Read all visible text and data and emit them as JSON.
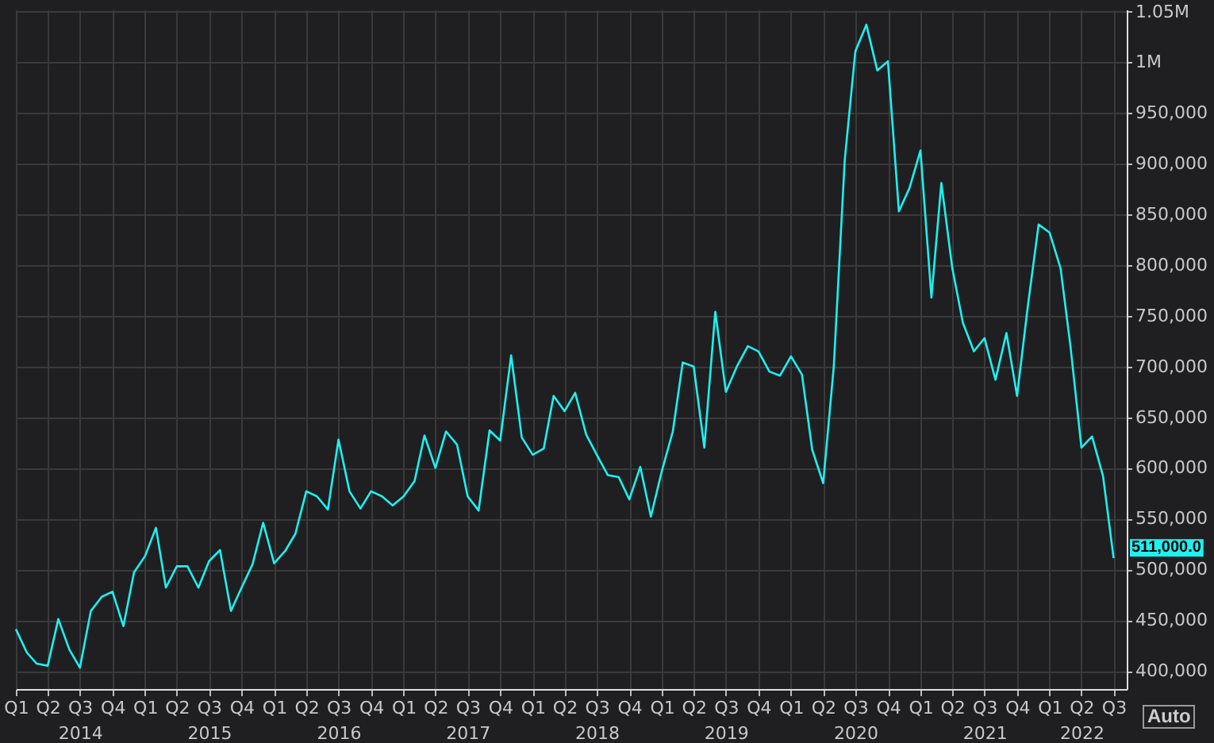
{
  "chart_data": {
    "type": "line",
    "x": [
      "2014-01",
      "2014-02",
      "2014-03",
      "2014-04",
      "2014-05",
      "2014-06",
      "2014-07",
      "2014-08",
      "2014-09",
      "2014-10",
      "2014-11",
      "2014-12",
      "2015-01",
      "2015-02",
      "2015-03",
      "2015-04",
      "2015-05",
      "2015-06",
      "2015-07",
      "2015-08",
      "2015-09",
      "2015-10",
      "2015-11",
      "2015-12",
      "2016-01",
      "2016-02",
      "2016-03",
      "2016-04",
      "2016-05",
      "2016-06",
      "2016-07",
      "2016-08",
      "2016-09",
      "2016-10",
      "2016-11",
      "2016-12",
      "2017-01",
      "2017-02",
      "2017-03",
      "2017-04",
      "2017-05",
      "2017-06",
      "2017-07",
      "2017-08",
      "2017-09",
      "2017-10",
      "2017-11",
      "2017-12",
      "2018-01",
      "2018-02",
      "2018-03",
      "2018-04",
      "2018-05",
      "2018-06",
      "2018-07",
      "2018-08",
      "2018-09",
      "2018-10",
      "2018-11",
      "2018-12",
      "2019-01",
      "2019-02",
      "2019-03",
      "2019-04",
      "2019-05",
      "2019-06",
      "2019-07",
      "2019-08",
      "2019-09",
      "2019-10",
      "2019-11",
      "2019-12",
      "2020-01",
      "2020-02",
      "2020-03",
      "2020-04",
      "2020-05",
      "2020-06",
      "2020-07",
      "2020-08",
      "2020-09",
      "2020-10",
      "2020-11",
      "2020-12",
      "2021-01",
      "2021-02",
      "2021-03",
      "2021-04",
      "2021-05",
      "2021-06",
      "2021-07",
      "2021-08",
      "2021-09",
      "2021-10",
      "2021-11",
      "2021-12",
      "2022-01",
      "2022-02",
      "2022-03",
      "2022-04",
      "2022-05",
      "2022-06",
      "2022-07"
    ],
    "series": [
      {
        "color": "#1ef0f0",
        "values": [
          441000,
          418000,
          407000,
          405000,
          451000,
          421000,
          403000,
          459000,
          473000,
          478000,
          444000,
          497000,
          513000,
          541000,
          482000,
          503000,
          503000,
          482000,
          508000,
          519000,
          459000,
          482000,
          505000,
          546000,
          506000,
          518000,
          535000,
          577000,
          572000,
          559000,
          628000,
          577000,
          560000,
          577000,
          572000,
          563000,
          572000,
          587000,
          632000,
          600000,
          636000,
          623000,
          572000,
          558000,
          637000,
          627000,
          711000,
          630000,
          613000,
          619000,
          671000,
          656000,
          674000,
          633000,
          613000,
          593000,
          591000,
          569000,
          601000,
          552000,
          597000,
          636000,
          704000,
          700000,
          620000,
          754000,
          675000,
          700000,
          720000,
          715000,
          695000,
          691000,
          710000,
          692000,
          618000,
          585000,
          700000,
          904000,
          1011000,
          1037000,
          992000,
          1001000,
          853000,
          876000,
          913000,
          768000,
          881000,
          797000,
          743000,
          715000,
          728000,
          687000,
          733000,
          671000,
          761000,
          840000,
          832000,
          797000,
          720000,
          620000,
          631000,
          592000,
          511000
        ]
      }
    ],
    "xlim": [
      "2014-01",
      "2022-08-07"
    ],
    "xticks": [
      {
        "value": "2014-01",
        "label": "Q1"
      },
      {
        "value": "2014-04",
        "label": "Q2"
      },
      {
        "value": "2014-07",
        "label": "Q3\n2014"
      },
      {
        "value": "2014-10",
        "label": "Q4"
      },
      {
        "value": "2015-01",
        "label": "Q1"
      },
      {
        "value": "2015-04",
        "label": "Q2"
      },
      {
        "value": "2015-07",
        "label": "Q3\n2015"
      },
      {
        "value": "2015-10",
        "label": "Q4"
      },
      {
        "value": "2016-01",
        "label": "Q1"
      },
      {
        "value": "2016-04",
        "label": "Q2"
      },
      {
        "value": "2016-07",
        "label": "Q3\n2016"
      },
      {
        "value": "2016-10",
        "label": "Q4"
      },
      {
        "value": "2017-01",
        "label": "Q1"
      },
      {
        "value": "2017-04",
        "label": "Q2"
      },
      {
        "value": "2017-07",
        "label": "Q3\n2017"
      },
      {
        "value": "2017-10",
        "label": "Q4"
      },
      {
        "value": "2018-01",
        "label": "Q1"
      },
      {
        "value": "2018-04",
        "label": "Q2"
      },
      {
        "value": "2018-07",
        "label": "Q3\n2018"
      },
      {
        "value": "2018-10",
        "label": "Q4"
      },
      {
        "value": "2019-01",
        "label": "Q1"
      },
      {
        "value": "2019-04",
        "label": "Q2"
      },
      {
        "value": "2019-07",
        "label": "Q3\n2019"
      },
      {
        "value": "2019-10",
        "label": "Q4"
      },
      {
        "value": "2020-01",
        "label": "Q1"
      },
      {
        "value": "2020-04",
        "label": "Q2"
      },
      {
        "value": "2020-07",
        "label": "Q3\n2020"
      },
      {
        "value": "2020-10",
        "label": "Q4"
      },
      {
        "value": "2021-01",
        "label": "Q1"
      },
      {
        "value": "2021-04",
        "label": "Q2"
      },
      {
        "value": "2021-07",
        "label": "Q3\n2021"
      },
      {
        "value": "2021-10",
        "label": "Q4"
      },
      {
        "value": "2022-01",
        "label": "Q1"
      },
      {
        "value": "2022-04",
        "label": "Q2\n2022"
      },
      {
        "value": "2022-07",
        "label": "Q3"
      }
    ],
    "ylim": [
      382000,
      1052000
    ],
    "yticks": [
      {
        "value": 400000,
        "label": "400,000"
      },
      {
        "value": 450000,
        "label": "450,000"
      },
      {
        "value": 500000,
        "label": "500,000"
      },
      {
        "value": 550000,
        "label": "550,000"
      },
      {
        "value": 600000,
        "label": "600,000"
      },
      {
        "value": 650000,
        "label": "650,000"
      },
      {
        "value": 700000,
        "label": "700,000"
      },
      {
        "value": 750000,
        "label": "750,000"
      },
      {
        "value": 800000,
        "label": "800,000"
      },
      {
        "value": 850000,
        "label": "850,000"
      },
      {
        "value": 900000,
        "label": "900,000"
      },
      {
        "value": 950000,
        "label": "950,000"
      },
      {
        "value": 1000000,
        "label": "1M"
      },
      {
        "value": 1050000,
        "label": "1.05M"
      }
    ],
    "annotations": [
      {
        "text": "511,000.0",
        "x": "2022-07",
        "y": 511000
      },
      "Auto"
    ],
    "grid": true,
    "marker": "none",
    "line_style": "solid"
  }
}
